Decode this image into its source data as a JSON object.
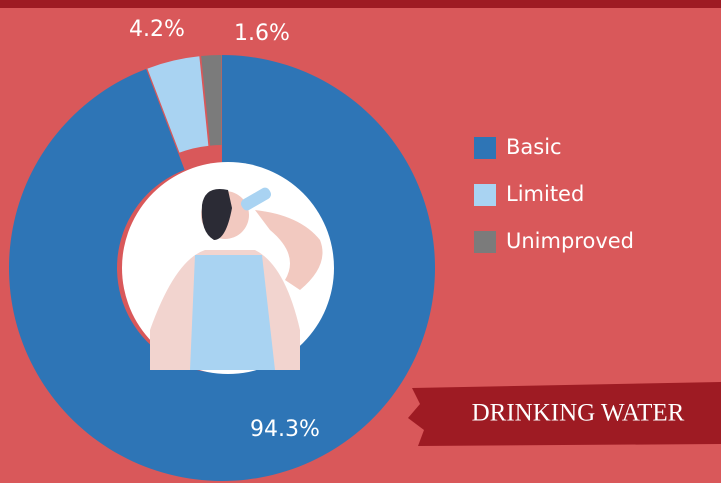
{
  "chart_data": {
    "type": "pie",
    "title": "DRINKING WATER",
    "categories": [
      "Basic",
      "Limited",
      "Unimproved"
    ],
    "values": [
      94.3,
      4.2,
      1.6
    ],
    "value_labels": [
      "94.3%",
      "4.2%",
      "1.6%"
    ],
    "colors": [
      "#2e75b6",
      "#a9d3f2",
      "#7b7b7b"
    ],
    "donut": true,
    "legend": "right"
  }
}
